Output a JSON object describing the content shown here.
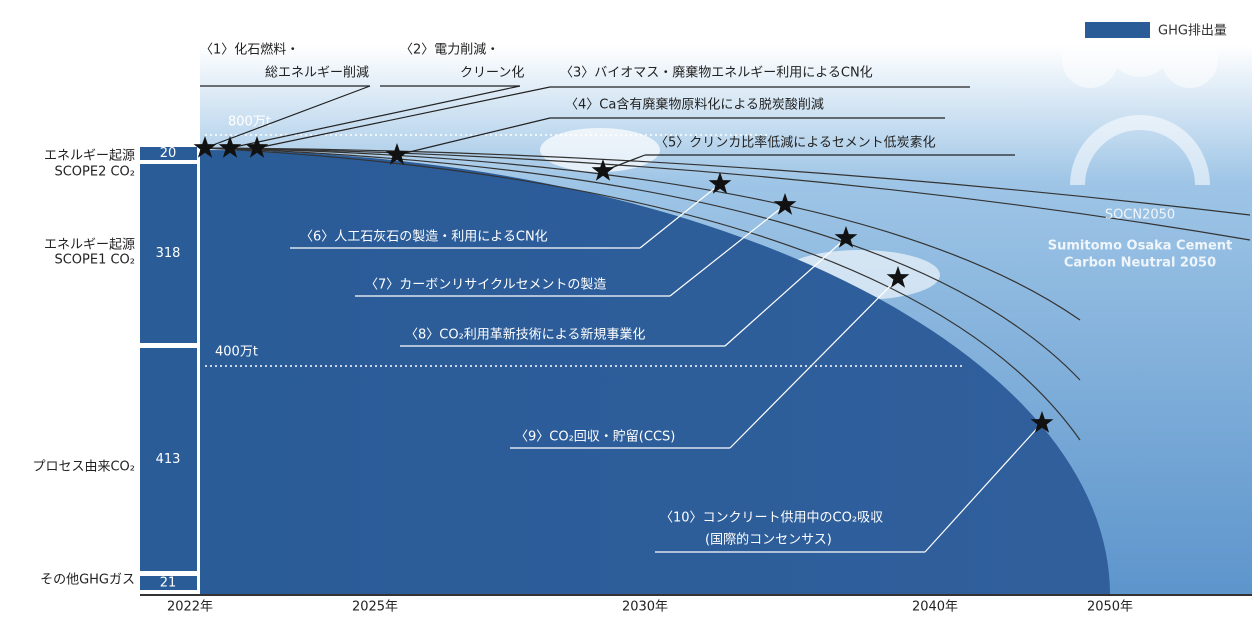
{
  "legend": {
    "label": "GHG排出量"
  },
  "bar": {
    "segments": [
      {
        "label": [
          "エネルギー起源",
          "SCOPE2 CO₂"
        ],
        "value": "20"
      },
      {
        "label": [
          "エネルギー起源",
          "SCOPE1 CO₂"
        ],
        "value": "318"
      },
      {
        "label": [
          "プロセス由来CO₂"
        ],
        "value": "413"
      },
      {
        "label": [
          "その他GHGガス"
        ],
        "value": "21"
      }
    ]
  },
  "thresholds": [
    "800万t",
    "400万t"
  ],
  "years": [
    "2022年",
    "2025年",
    "2030年",
    "2040年",
    "2050年"
  ],
  "annotations": [
    {
      "lines": [
        "〈1〉化石燃料・",
        "総エネルギー削減"
      ]
    },
    {
      "lines": [
        "〈2〉電力削減・",
        "クリーン化"
      ]
    },
    {
      "lines": [
        "〈3〉バイオマス・廃棄物エネルギー利用によるCN化"
      ]
    },
    {
      "lines": [
        "〈4〉Ca含有廃棄物原料化による脱炭酸削減"
      ]
    },
    {
      "lines": [
        "〈5〉クリンカ比率低減によるセメント低炭素化"
      ]
    },
    {
      "lines": [
        "〈6〉人工石灰石の製造・利用によるCN化"
      ]
    },
    {
      "lines": [
        "〈7〉カーボンリサイクルセメントの製造"
      ]
    },
    {
      "lines": [
        "〈8〉CO₂利用革新技術による新規事業化"
      ]
    },
    {
      "lines": [
        "〈9〉CO₂回収・貯留(CCS)"
      ]
    },
    {
      "lines": [
        "〈10〉コンクリート供用中のCO₂吸収",
        "(国際的コンセンサス)"
      ]
    }
  ],
  "logo": {
    "title": "SOCN2050",
    "lines": [
      "Sumitomo Osaka Cement",
      "Carbon Neutral 2050"
    ]
  }
}
